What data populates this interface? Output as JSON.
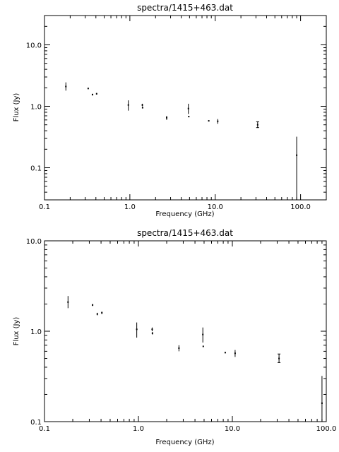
{
  "chart_data": [
    {
      "type": "scatter",
      "title": "spectra/1415+463.dat",
      "xlabel": "Frequency (GHz)",
      "ylabel": "Flux (Jy)",
      "x_scale": "log",
      "y_scale": "log",
      "xlim": [
        0.1,
        200
      ],
      "ylim": [
        0.03,
        30
      ],
      "grid": false,
      "x_ticks": [
        {
          "value": 0.1,
          "label": "0.1"
        },
        {
          "value": 1,
          "label": "1.0"
        },
        {
          "value": 10,
          "label": "10.0"
        },
        {
          "value": 100,
          "label": "100.0"
        }
      ],
      "y_ticks": [
        {
          "value": 0.1,
          "label": "0.1"
        },
        {
          "value": 1,
          "label": "1.0"
        },
        {
          "value": 10,
          "label": "10.0"
        }
      ],
      "points": [
        {
          "x": 0.178,
          "y": 2.1,
          "ylo": 1.8,
          "yhi": 2.45
        },
        {
          "x": 0.325,
          "y": 1.95,
          "ylo": 1.9,
          "yhi": 2.0
        },
        {
          "x": 0.365,
          "y": 1.55,
          "ylo": 1.5,
          "yhi": 1.6
        },
        {
          "x": 0.408,
          "y": 1.6,
          "ylo": 1.55,
          "yhi": 1.65
        },
        {
          "x": 0.96,
          "y": 1.05,
          "ylo": 0.85,
          "yhi": 1.25
        },
        {
          "x": 1.4,
          "y": 1.05,
          "ylo": 1.0,
          "yhi": 1.1
        },
        {
          "x": 1.41,
          "y": 0.95,
          "ylo": 0.92,
          "yhi": 0.98
        },
        {
          "x": 2.7,
          "y": 0.65,
          "ylo": 0.6,
          "yhi": 0.7
        },
        {
          "x": 4.85,
          "y": 0.92,
          "ylo": 0.75,
          "yhi": 1.1
        },
        {
          "x": 4.9,
          "y": 0.68,
          "ylo": 0.67,
          "yhi": 0.69
        },
        {
          "x": 8.4,
          "y": 0.58,
          "ylo": 0.57,
          "yhi": 0.59
        },
        {
          "x": 10.7,
          "y": 0.57,
          "ylo": 0.52,
          "yhi": 0.62
        },
        {
          "x": 31.4,
          "y": 0.5,
          "ylo": 0.45,
          "yhi": 0.56
        },
        {
          "x": 90,
          "y": 0.16,
          "ylo": 0.03,
          "yhi": 0.32
        }
      ]
    },
    {
      "type": "scatter",
      "title": "spectra/1415+463.dat",
      "xlabel": "Frequency (GHz)",
      "ylabel": "Flux (Jy)",
      "x_scale": "log",
      "y_scale": "log",
      "xlim": [
        0.1,
        100
      ],
      "ylim": [
        0.1,
        10
      ],
      "grid": false,
      "x_ticks": [
        {
          "value": 0.1,
          "label": "0.1"
        },
        {
          "value": 1,
          "label": "1.0"
        },
        {
          "value": 10,
          "label": "10.0"
        },
        {
          "value": 100,
          "label": "100.0"
        }
      ],
      "y_ticks": [
        {
          "value": 0.1,
          "label": "0.1"
        },
        {
          "value": 1,
          "label": "1.0"
        },
        {
          "value": 10,
          "label": "10.0"
        }
      ],
      "points": [
        {
          "x": 0.178,
          "y": 2.1,
          "ylo": 1.8,
          "yhi": 2.45
        },
        {
          "x": 0.325,
          "y": 1.95,
          "ylo": 1.9,
          "yhi": 2.0
        },
        {
          "x": 0.365,
          "y": 1.55,
          "ylo": 1.5,
          "yhi": 1.6
        },
        {
          "x": 0.408,
          "y": 1.6,
          "ylo": 1.55,
          "yhi": 1.65
        },
        {
          "x": 0.96,
          "y": 1.05,
          "ylo": 0.85,
          "yhi": 1.25
        },
        {
          "x": 1.4,
          "y": 1.05,
          "ylo": 1.0,
          "yhi": 1.1
        },
        {
          "x": 1.41,
          "y": 0.95,
          "ylo": 0.92,
          "yhi": 0.98
        },
        {
          "x": 2.7,
          "y": 0.65,
          "ylo": 0.6,
          "yhi": 0.7
        },
        {
          "x": 4.85,
          "y": 0.92,
          "ylo": 0.75,
          "yhi": 1.1
        },
        {
          "x": 4.9,
          "y": 0.68,
          "ylo": 0.67,
          "yhi": 0.69
        },
        {
          "x": 8.4,
          "y": 0.58,
          "ylo": 0.57,
          "yhi": 0.59
        },
        {
          "x": 10.7,
          "y": 0.57,
          "ylo": 0.52,
          "yhi": 0.62
        },
        {
          "x": 31.4,
          "y": 0.5,
          "ylo": 0.45,
          "yhi": 0.56
        },
        {
          "x": 90,
          "y": 0.16,
          "ylo": 0.1,
          "yhi": 0.32
        }
      ]
    }
  ]
}
